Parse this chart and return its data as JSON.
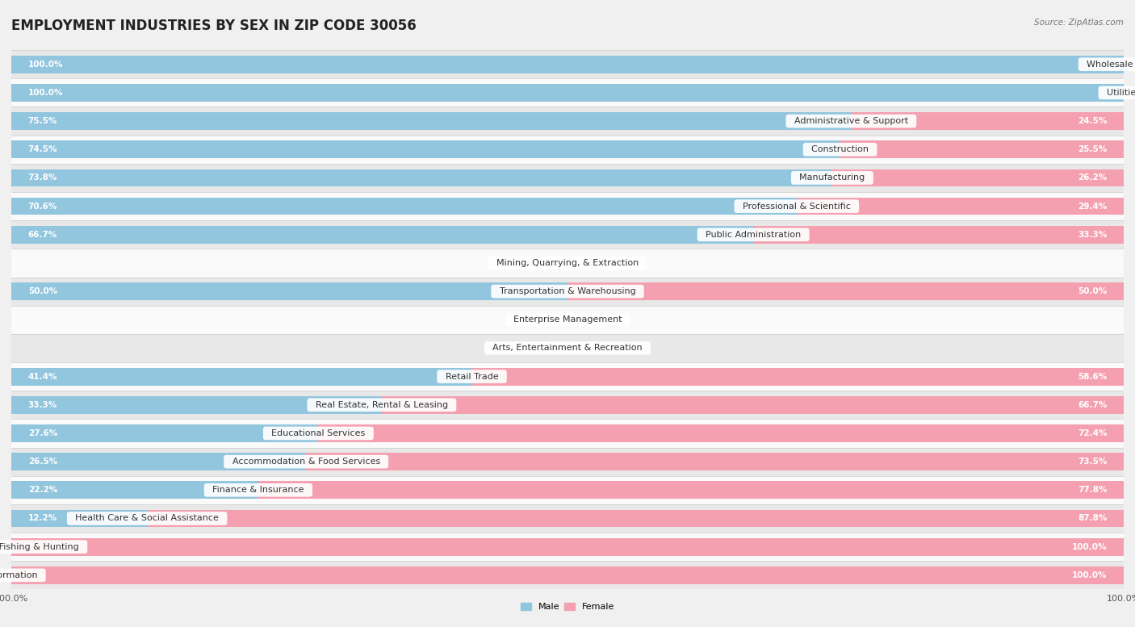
{
  "title": "EMPLOYMENT INDUSTRIES BY SEX IN ZIP CODE 30056",
  "source": "Source: ZipAtlas.com",
  "categories": [
    "Wholesale Trade",
    "Utilities",
    "Administrative & Support",
    "Construction",
    "Manufacturing",
    "Professional & Scientific",
    "Public Administration",
    "Mining, Quarrying, & Extraction",
    "Transportation & Warehousing",
    "Enterprise Management",
    "Arts, Entertainment & Recreation",
    "Retail Trade",
    "Real Estate, Rental & Leasing",
    "Educational Services",
    "Accommodation & Food Services",
    "Finance & Insurance",
    "Health Care & Social Assistance",
    "Agriculture, Fishing & Hunting",
    "Information"
  ],
  "male_pct": [
    100.0,
    100.0,
    75.5,
    74.5,
    73.8,
    70.6,
    66.7,
    0.0,
    50.0,
    0.0,
    0.0,
    41.4,
    33.3,
    27.6,
    26.5,
    22.2,
    12.2,
    0.0,
    0.0
  ],
  "female_pct": [
    0.0,
    0.0,
    24.5,
    25.5,
    26.2,
    29.4,
    33.3,
    0.0,
    50.0,
    0.0,
    0.0,
    58.6,
    66.7,
    72.4,
    73.5,
    77.8,
    87.8,
    100.0,
    100.0
  ],
  "male_color": "#92C5DE",
  "female_color": "#F4A0B0",
  "bar_height": 0.62,
  "bg_color": "#f0f0f0",
  "row_even_color": "#e8e8e8",
  "row_odd_color": "#fafafa",
  "title_fontsize": 12,
  "label_fontsize": 8,
  "pct_fontsize": 7.5,
  "tick_fontsize": 8
}
